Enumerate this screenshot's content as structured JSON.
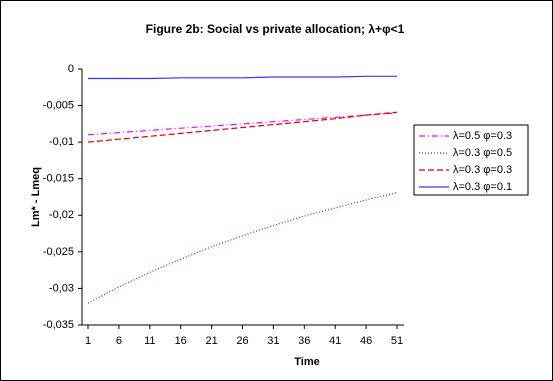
{
  "chart_data": {
    "type": "line",
    "title": "Figure 2b: Social vs private allocation; λ+φ<1",
    "x_label": "Time",
    "y_label": "Lm* - Lmeq",
    "x": [
      1,
      6,
      11,
      16,
      21,
      26,
      31,
      36,
      41,
      46,
      51
    ],
    "xlim": [
      1,
      51
    ],
    "xticks": [
      1,
      6,
      11,
      16,
      21,
      26,
      31,
      36,
      41,
      46,
      51
    ],
    "ylim": [
      -0.035,
      0
    ],
    "yticks": [
      {
        "value": -0.035,
        "label": "-0,035"
      },
      {
        "value": -0.03,
        "label": "-0,03"
      },
      {
        "value": -0.025,
        "label": "-0,025"
      },
      {
        "value": -0.02,
        "label": "-0,02"
      },
      {
        "value": -0.015,
        "label": "-0,015"
      },
      {
        "value": -0.01,
        "label": "-0,01"
      },
      {
        "value": -0.005,
        "label": "-0,005"
      },
      0
    ],
    "grid": false,
    "legend": "right",
    "series": [
      {
        "name": "λ=0.5 φ=0.3",
        "color": "#ff00ff",
        "dash": "dash-dot",
        "values": [
          -0.009,
          -0.0087,
          -0.0084,
          -0.0081,
          -0.0078,
          -0.0075,
          -0.0072,
          -0.0069,
          -0.0066,
          -0.0063,
          -0.006
        ]
      },
      {
        "name": "λ=0.3 φ=0.5",
        "color": "#008000",
        "dash": "dot",
        "values": [
          -0.032,
          -0.0298,
          -0.0278,
          -0.026,
          -0.0243,
          -0.0228,
          -0.0214,
          -0.0201,
          -0.019,
          -0.0179,
          -0.0169
        ]
      },
      {
        "name": "λ=0.3 φ=0.3",
        "color": "#dd0000",
        "dash": "dash",
        "values": [
          -0.01,
          -0.0096,
          -0.0092,
          -0.0088,
          -0.0084,
          -0.008,
          -0.0076,
          -0.0072,
          -0.0068,
          -0.0063,
          -0.0059
        ]
      },
      {
        "name": "λ=0.3 φ=0.1",
        "color": "#3333ff",
        "dash": "solid",
        "values": [
          -0.0013,
          -0.0013,
          -0.0013,
          -0.0012,
          -0.0012,
          -0.0012,
          -0.0011,
          -0.0011,
          -0.0011,
          -0.001,
          -0.001
        ]
      }
    ]
  }
}
